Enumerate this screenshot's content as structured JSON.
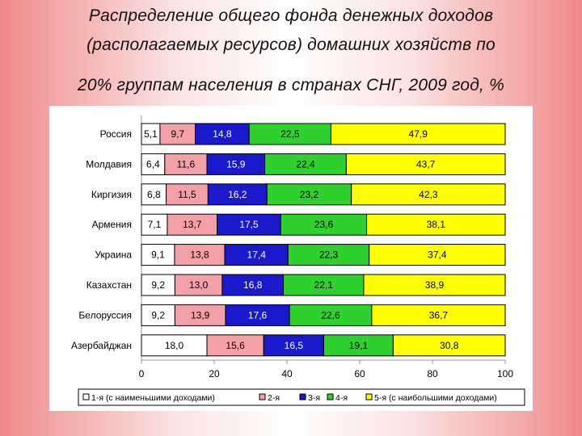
{
  "title": {
    "line1": "Распределение общего фонда денежных доходов",
    "line2": "(располагаемых ресурсов) домашних хозяйств по",
    "line3": "20% группам населения в странах СНГ, 2009 год, %"
  },
  "chart_data": {
    "type": "bar",
    "orientation": "horizontal",
    "stacked": true,
    "categories": [
      "Россия",
      "Молдавия",
      "Киргизия",
      "Армения",
      "Украина",
      "Казахстан",
      "Белоруссия",
      "Азербайджан"
    ],
    "series": [
      {
        "name": "1-я (с наименьшими доходами)",
        "color": "#ffffff",
        "values": [
          5.1,
          6.4,
          6.8,
          7.1,
          9.1,
          9.2,
          9.2,
          18.0
        ],
        "labels": [
          "5,1",
          "6,4",
          "6,8",
          "7,1",
          "9,1",
          "9,2",
          "9,2",
          "18,0"
        ]
      },
      {
        "name": "2-я",
        "color": "#f4a0a8",
        "values": [
          9.7,
          11.6,
          11.5,
          13.7,
          13.8,
          13.0,
          13.9,
          15.6
        ],
        "labels": [
          "9,7",
          "11,6",
          "11,5",
          "13,7",
          "13,8",
          "13,0",
          "13,9",
          "15,6"
        ]
      },
      {
        "name": "3-я",
        "color": "#1a1acc",
        "values": [
          14.8,
          15.9,
          16.2,
          17.5,
          17.4,
          16.8,
          17.6,
          16.5
        ],
        "labels": [
          "14,8",
          "15,9",
          "16,2",
          "17,5",
          "17,4",
          "16,8",
          "17,6",
          "16,5"
        ]
      },
      {
        "name": "4-я",
        "color": "#2ed12e",
        "values": [
          22.5,
          22.4,
          23.2,
          23.6,
          22.3,
          22.1,
          22.6,
          19.1
        ],
        "labels": [
          "22,5",
          "22,4",
          "23,2",
          "23,6",
          "22,3",
          "22,1",
          "22,6",
          "19,1"
        ]
      },
      {
        "name": "5-я (с наибольшими доходами)",
        "color": "#ffff00",
        "values": [
          47.9,
          43.7,
          42.3,
          38.1,
          37.4,
          38.9,
          36.7,
          30.8
        ],
        "labels": [
          "47,9",
          "43,7",
          "42,3",
          "38,1",
          "37,4",
          "38,9",
          "36,7",
          "30,8"
        ]
      }
    ],
    "xlim": [
      0,
      100
    ],
    "xticks": [
      0,
      20,
      40,
      60,
      80,
      100
    ],
    "legend_position": "bottom",
    "grid": false
  }
}
